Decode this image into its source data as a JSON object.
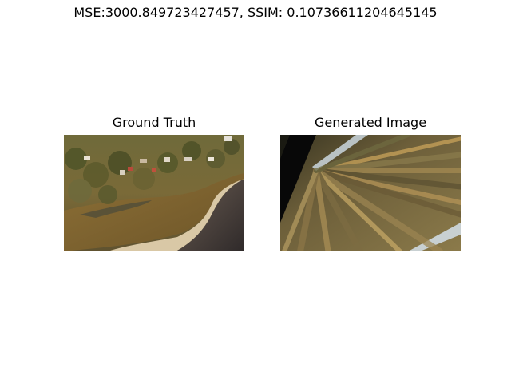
{
  "figure": {
    "suptitle": "MSE:3000.849723427457, SSIM: 0.10736611204645145"
  },
  "panels": [
    {
      "title": "Ground Truth"
    },
    {
      "title": "Generated Image"
    }
  ]
}
